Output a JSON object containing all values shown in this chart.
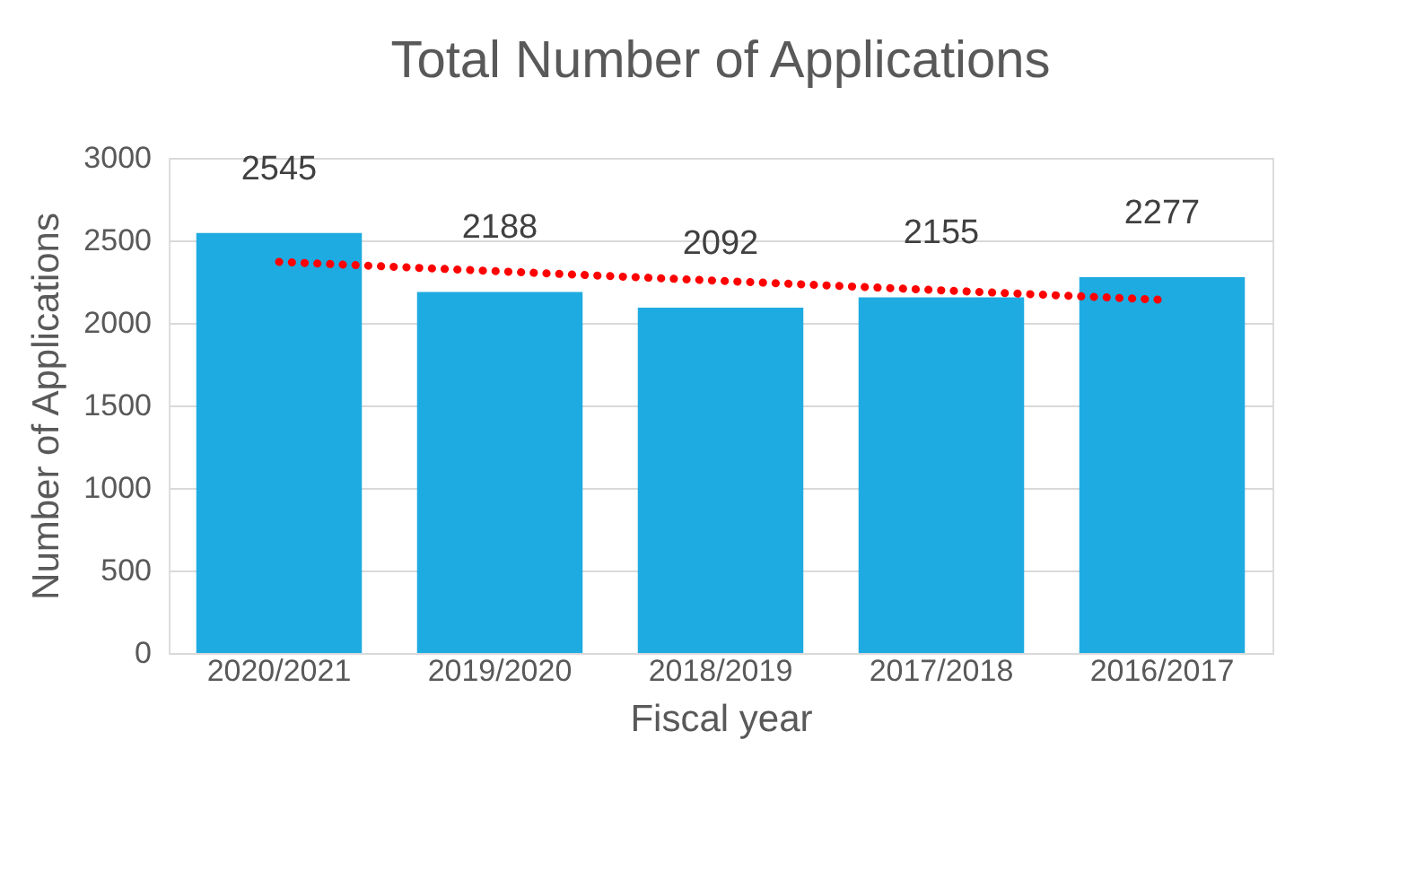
{
  "chart_data": {
    "type": "bar",
    "title": "Total Number of Applications",
    "xlabel": "Fiscal year",
    "ylabel": "Number of Applications",
    "categories": [
      "2020/2021",
      "2019/2020",
      "2018/2019",
      "2017/2018",
      "2016/2017"
    ],
    "series": [
      {
        "color": "#1eabe1",
        "values": [
          2545,
          2188,
          2092,
          2155,
          2277
        ],
        "value_labels": [
          "2545",
          "2188",
          "2092",
          "2155",
          "2277"
        ]
      },
      {
        "type": "line",
        "color": "#ff0000",
        "line_style": "dotted",
        "x": [
          "2020/2021",
          "2016/2017"
        ],
        "values": [
          2370,
          2140
        ]
      }
    ],
    "ylim": [
      0,
      3000
    ],
    "yticks": [
      0,
      500,
      1000,
      1500,
      2000,
      2500,
      3000
    ],
    "grid": "y",
    "legend": false
  }
}
